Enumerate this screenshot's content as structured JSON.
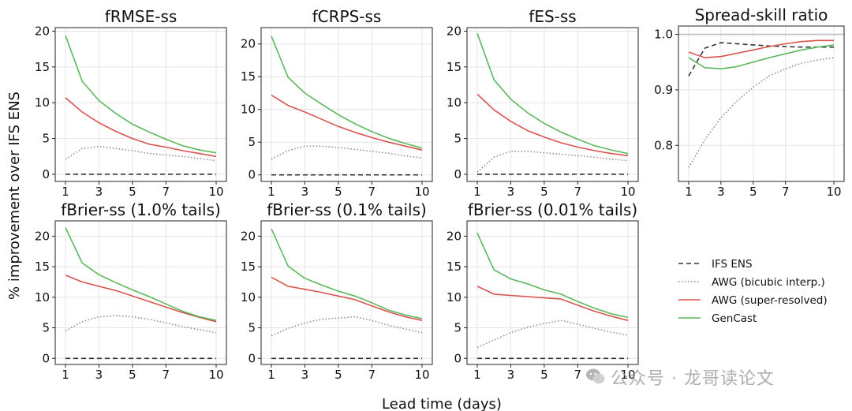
{
  "figure": {
    "ylabel": "% improvement over IFS ENS",
    "xlabel": "Lead time (days)",
    "legend": {
      "placement": "bottom-right",
      "entries": [
        {
          "name": "IFS ENS",
          "color": "#333333",
          "dash": "dashed"
        },
        {
          "name": "AWG (bicubic interp.)",
          "color": "#888888",
          "dash": "dotted"
        },
        {
          "name": "AWG (super-resolved)",
          "color": "#d9534f",
          "dash": "solid"
        },
        {
          "name": "GenCast",
          "color": "#5cb85c",
          "dash": "solid"
        }
      ]
    },
    "watermark": "公众号 · 龙哥读论文"
  },
  "chart_data": [
    {
      "type": "line",
      "title": "fRMSE-ss",
      "xlabel": "",
      "ylabel": "% improvement over IFS ENS",
      "xlim": [
        1,
        10
      ],
      "ylim": [
        -1,
        20.5
      ],
      "xticks": [
        1,
        3,
        5,
        7,
        10
      ],
      "yticks": [
        0,
        5,
        10,
        15,
        20
      ],
      "x": [
        1,
        2,
        3,
        4,
        5,
        6,
        7,
        8,
        9,
        10
      ],
      "series": [
        {
          "name": "IFS ENS",
          "values": [
            0,
            0,
            0,
            0,
            0,
            0,
            0,
            0,
            0,
            0
          ]
        },
        {
          "name": "AWG (bicubic interp.)",
          "values": [
            2.1,
            3.6,
            3.9,
            3.6,
            3.3,
            2.9,
            2.7,
            2.5,
            2.2,
            1.9
          ]
        },
        {
          "name": "AWG (super-resolved)",
          "values": [
            10.7,
            8.7,
            7.2,
            6.0,
            5.0,
            4.2,
            3.8,
            3.3,
            2.9,
            2.5
          ]
        },
        {
          "name": "GenCast",
          "values": [
            19.4,
            13.0,
            10.3,
            8.5,
            7.0,
            5.9,
            4.9,
            4.0,
            3.4,
            3.0
          ]
        }
      ]
    },
    {
      "type": "line",
      "title": "fCRPS-ss",
      "xlabel": "",
      "ylabel": "",
      "xlim": [
        1,
        10
      ],
      "ylim": [
        -1,
        22.5
      ],
      "xticks": [
        1,
        3,
        5,
        7,
        10
      ],
      "yticks": [
        0,
        5,
        10,
        15,
        20
      ],
      "x": [
        1,
        2,
        3,
        4,
        5,
        6,
        7,
        8,
        9,
        10
      ],
      "series": [
        {
          "name": "IFS ENS",
          "values": [
            0,
            0,
            0,
            0,
            0,
            0,
            0,
            0,
            0,
            0
          ]
        },
        {
          "name": "AWG (bicubic interp.)",
          "values": [
            2.4,
            3.7,
            4.4,
            4.4,
            4.2,
            3.9,
            3.6,
            3.3,
            2.9,
            2.6
          ]
        },
        {
          "name": "AWG (super-resolved)",
          "values": [
            12.2,
            10.6,
            9.6,
            8.5,
            7.4,
            6.5,
            5.7,
            5.0,
            4.4,
            3.8
          ]
        },
        {
          "name": "GenCast",
          "values": [
            21.2,
            14.9,
            12.5,
            10.8,
            9.2,
            7.8,
            6.6,
            5.6,
            4.8,
            4.1
          ]
        }
      ]
    },
    {
      "type": "line",
      "title": "fES-ss",
      "xlabel": "",
      "ylabel": "",
      "xlim": [
        1,
        10
      ],
      "ylim": [
        -1,
        20.5
      ],
      "xticks": [
        1,
        3,
        5,
        7,
        10
      ],
      "yticks": [
        0,
        5,
        10,
        15,
        20
      ],
      "x": [
        1,
        2,
        3,
        4,
        5,
        6,
        7,
        8,
        9,
        10
      ],
      "series": [
        {
          "name": "IFS ENS",
          "values": [
            0,
            0,
            0,
            0,
            0,
            0,
            0,
            0,
            0,
            0
          ]
        },
        {
          "name": "AWG (bicubic interp.)",
          "values": [
            0.3,
            2.4,
            3.2,
            3.2,
            3.0,
            2.8,
            2.6,
            2.4,
            2.1,
            1.9
          ]
        },
        {
          "name": "AWG (super-resolved)",
          "values": [
            11.2,
            9.0,
            7.4,
            6.1,
            5.2,
            4.4,
            3.8,
            3.3,
            2.9,
            2.6
          ]
        },
        {
          "name": "GenCast",
          "values": [
            19.7,
            13.2,
            10.5,
            8.6,
            7.1,
            5.9,
            4.9,
            4.0,
            3.4,
            2.9
          ]
        }
      ]
    },
    {
      "type": "line",
      "title": "Spread-skill ratio",
      "xlabel": "",
      "ylabel": "",
      "xlim": [
        1,
        10
      ],
      "ylim": [
        0.735,
        1.015
      ],
      "xticks": [
        1,
        3,
        5,
        7,
        10
      ],
      "yticks": [
        0.8,
        0.9,
        1.0
      ],
      "reference_line": 1.0,
      "x": [
        1,
        2,
        3,
        4,
        5,
        6,
        7,
        8,
        9,
        10
      ],
      "series": [
        {
          "name": "IFS ENS",
          "values": [
            0.925,
            0.975,
            0.985,
            0.983,
            0.981,
            0.979,
            0.978,
            0.977,
            0.977,
            0.977
          ]
        },
        {
          "name": "AWG (bicubic interp.)",
          "values": [
            0.76,
            0.81,
            0.85,
            0.88,
            0.905,
            0.925,
            0.938,
            0.948,
            0.954,
            0.958
          ]
        },
        {
          "name": "AWG (super-resolved)",
          "values": [
            0.968,
            0.958,
            0.96,
            0.966,
            0.972,
            0.978,
            0.983,
            0.987,
            0.989,
            0.989
          ]
        },
        {
          "name": "GenCast",
          "values": [
            0.958,
            0.94,
            0.938,
            0.942,
            0.95,
            0.958,
            0.965,
            0.972,
            0.977,
            0.981
          ]
        }
      ]
    },
    {
      "type": "line",
      "title": "fBrier-ss (1.0% tails)",
      "xlabel": "",
      "ylabel": "",
      "xlim": [
        1,
        10
      ],
      "ylim": [
        -1,
        22.5
      ],
      "xticks": [
        1,
        3,
        5,
        7,
        10
      ],
      "yticks": [
        0,
        5,
        10,
        15,
        20
      ],
      "x": [
        1,
        2,
        3,
        4,
        5,
        6,
        7,
        8,
        9,
        10
      ],
      "series": [
        {
          "name": "IFS ENS",
          "values": [
            0,
            0,
            0,
            0,
            0,
            0,
            0,
            0,
            0,
            0
          ]
        },
        {
          "name": "AWG (bicubic interp.)",
          "values": [
            4.5,
            6.0,
            6.8,
            7.0,
            6.8,
            6.4,
            5.8,
            5.2,
            4.7,
            4.2
          ]
        },
        {
          "name": "AWG (super-resolved)",
          "values": [
            13.6,
            12.5,
            11.8,
            11.1,
            10.2,
            9.3,
            8.4,
            7.5,
            6.7,
            6.0
          ]
        },
        {
          "name": "GenCast",
          "values": [
            21.4,
            15.6,
            13.7,
            12.4,
            11.2,
            10.1,
            8.9,
            7.7,
            6.8,
            6.2
          ]
        }
      ]
    },
    {
      "type": "line",
      "title": "fBrier-ss (0.1% tails)",
      "xlabel": "",
      "ylabel": "",
      "xlim": [
        1,
        10
      ],
      "ylim": [
        -1,
        22.5
      ],
      "xticks": [
        1,
        3,
        5,
        7,
        10
      ],
      "yticks": [
        0,
        5,
        10,
        15,
        20
      ],
      "x": [
        1,
        2,
        3,
        4,
        5,
        6,
        7,
        8,
        9,
        10
      ],
      "series": [
        {
          "name": "IFS ENS",
          "values": [
            0,
            0,
            0,
            0,
            0,
            0,
            0,
            0,
            0,
            0
          ]
        },
        {
          "name": "AWG (bicubic interp.)",
          "values": [
            3.7,
            4.9,
            5.8,
            6.4,
            6.6,
            6.8,
            6.2,
            5.4,
            4.8,
            4.2
          ]
        },
        {
          "name": "AWG (super-resolved)",
          "values": [
            13.3,
            11.8,
            11.3,
            10.8,
            10.2,
            9.6,
            8.6,
            7.6,
            6.8,
            6.2
          ]
        },
        {
          "name": "GenCast",
          "values": [
            21.2,
            15.1,
            13.1,
            12.0,
            11.0,
            10.2,
            9.1,
            7.9,
            7.1,
            6.5
          ]
        }
      ]
    },
    {
      "type": "line",
      "title": "fBrier-ss (0.01% tails)",
      "xlabel": "",
      "ylabel": "",
      "xlim": [
        1,
        10
      ],
      "ylim": [
        -1,
        22.5
      ],
      "xticks": [
        1,
        3,
        5,
        7,
        10
      ],
      "yticks": [
        0,
        5,
        10,
        15,
        20
      ],
      "x": [
        1,
        2,
        3,
        4,
        5,
        6,
        7,
        8,
        9,
        10
      ],
      "series": [
        {
          "name": "IFS ENS",
          "values": [
            0,
            0,
            0,
            0,
            0,
            0,
            0,
            0,
            0,
            0
          ]
        },
        {
          "name": "AWG (bicubic interp.)",
          "values": [
            1.8,
            3.0,
            4.2,
            5.1,
            5.7,
            6.2,
            5.6,
            4.9,
            4.3,
            3.8
          ]
        },
        {
          "name": "AWG (super-resolved)",
          "values": [
            11.8,
            10.5,
            10.3,
            10.1,
            9.9,
            9.7,
            8.7,
            7.7,
            6.9,
            6.2
          ]
        },
        {
          "name": "GenCast",
          "values": [
            20.5,
            14.5,
            13.0,
            12.2,
            11.2,
            10.5,
            9.3,
            8.2,
            7.3,
            6.7
          ]
        }
      ]
    }
  ]
}
